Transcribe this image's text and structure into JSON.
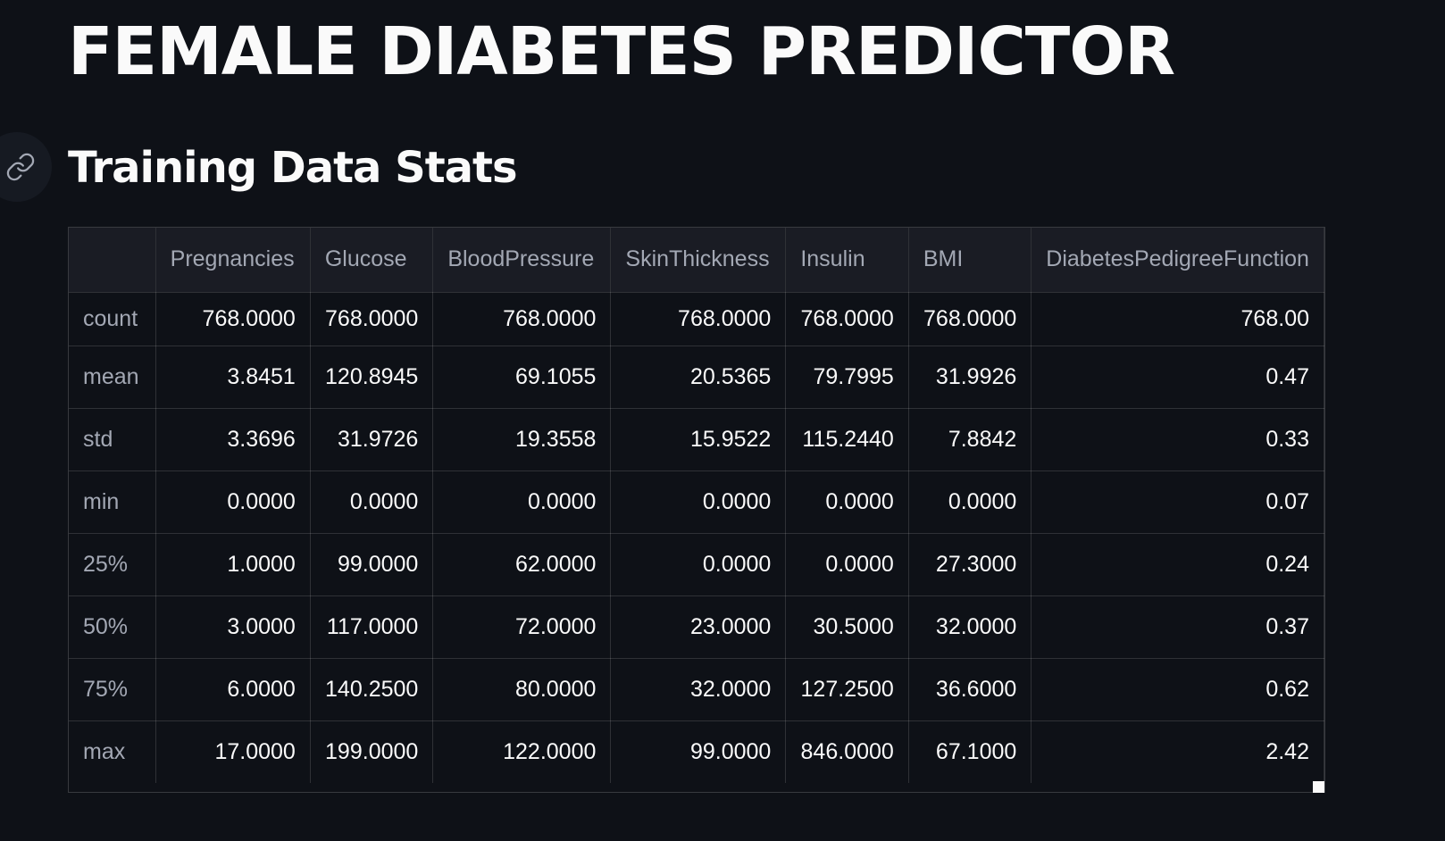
{
  "page": {
    "title": "FEMALE DIABETES PREDICTOR",
    "section_title": "Training Data Stats",
    "link_icon": "link-icon"
  },
  "table": {
    "columns": [
      "Pregnancies",
      "Glucose",
      "BloodPressure",
      "SkinThickness",
      "Insulin",
      "BMI",
      "DiabetesPedigreeFunction"
    ],
    "rows": [
      {
        "label": "count",
        "values": [
          "768.0000",
          "768.0000",
          "768.0000",
          "768.0000",
          "768.0000",
          "768.0000",
          "768.00"
        ]
      },
      {
        "label": "mean",
        "values": [
          "3.8451",
          "120.8945",
          "69.1055",
          "20.5365",
          "79.7995",
          "31.9926",
          "0.47"
        ]
      },
      {
        "label": "std",
        "values": [
          "3.3696",
          "31.9726",
          "19.3558",
          "15.9522",
          "115.2440",
          "7.8842",
          "0.33"
        ]
      },
      {
        "label": "min",
        "values": [
          "0.0000",
          "0.0000",
          "0.0000",
          "0.0000",
          "0.0000",
          "0.0000",
          "0.07"
        ]
      },
      {
        "label": "25%",
        "values": [
          "1.0000",
          "99.0000",
          "62.0000",
          "0.0000",
          "0.0000",
          "27.3000",
          "0.24"
        ]
      },
      {
        "label": "50%",
        "values": [
          "3.0000",
          "117.0000",
          "72.0000",
          "23.0000",
          "30.5000",
          "32.0000",
          "0.37"
        ]
      },
      {
        "label": "75%",
        "values": [
          "6.0000",
          "140.2500",
          "80.0000",
          "32.0000",
          "127.2500",
          "36.6000",
          "0.62"
        ]
      },
      {
        "label": "max",
        "values": [
          "17.0000",
          "199.0000",
          "122.0000",
          "99.0000",
          "846.0000",
          "67.1000",
          "2.42"
        ]
      }
    ]
  },
  "colors": {
    "background": "#0e1117",
    "text": "#fafafa",
    "muted_text": "#a3a8b4",
    "header_bg": "#1a1c24"
  }
}
